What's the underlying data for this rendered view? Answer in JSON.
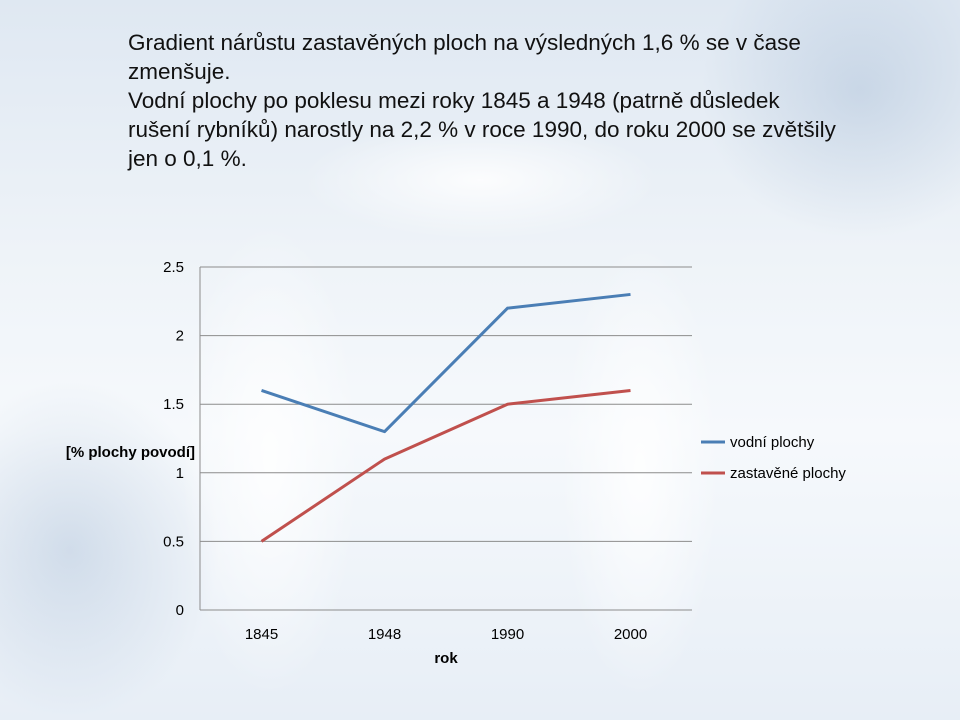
{
  "text": {
    "paragraph1": "Gradient nárůstu zastavěných ploch na výsledných 1,6 % se v čase zmenšuje.",
    "paragraph2": "Vodní plochy po poklesu mezi roky 1845 a 1948 (patrně důsledek rušení rybníků) narostly na 2,2 % v roce 1990, do roku 2000 se zvětšily jen o 0,1 %."
  },
  "chart_data": {
    "type": "line",
    "categories": [
      "1845",
      "1948",
      "1990",
      "2000"
    ],
    "series": [
      {
        "name": "vodní plochy",
        "values": [
          1.6,
          1.3,
          2.2,
          2.3
        ],
        "color": "#4a7eb5"
      },
      {
        "name": "zastavěné plochy",
        "values": [
          0.5,
          1.1,
          1.5,
          1.6
        ],
        "color": "#c0504d"
      }
    ],
    "ylim": [
      0,
      2.5
    ],
    "yticks": [
      "0",
      "0.5",
      "1",
      "1.5",
      "2",
      "2.5"
    ],
    "xlabel": "rok",
    "ylabel": "[% plochy povodí]",
    "grid": "horizontal",
    "legend": "right"
  }
}
